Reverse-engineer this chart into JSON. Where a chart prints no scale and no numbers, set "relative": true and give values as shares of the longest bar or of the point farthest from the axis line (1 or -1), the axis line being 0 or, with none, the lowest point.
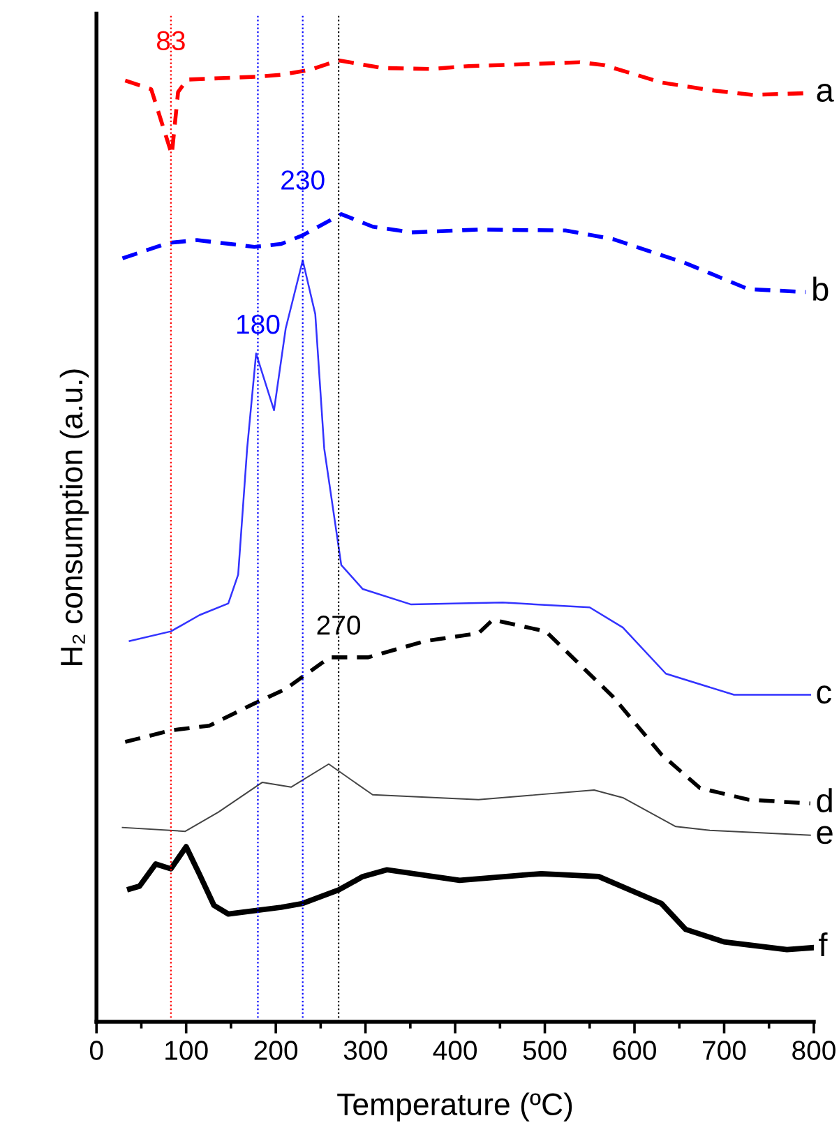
{
  "chart_data": {
    "type": "line",
    "relative": true,
    "xlabel": "Temperature (ºC)",
    "ylabel": "H₂ consumption (a.u.)",
    "xlim": [
      0,
      800
    ],
    "xticks": [
      0,
      100,
      200,
      300,
      400,
      500,
      600,
      700,
      800
    ],
    "tick_labels": "x",
    "grid": false,
    "legend": false,
    "marker": "none",
    "series": [
      {
        "name": "a",
        "color": "#ff0000",
        "line_style": "dashed",
        "x": [
          32,
          61,
          84,
          91,
          101,
          179,
          206,
          238,
          270,
          319,
          372,
          415,
          539,
          566,
          630,
          684,
          732,
          796
        ],
        "values": [
          0.979,
          0.97,
          0.902,
          0.967,
          0.98,
          0.983,
          0.985,
          0.99,
          1.0,
          0.992,
          0.991,
          0.994,
          0.998,
          0.995,
          0.977,
          0.969,
          0.964,
          0.966
        ]
      },
      {
        "name": "b",
        "color": "#0000ff",
        "line_style": "dashed",
        "x": [
          29,
          80,
          112,
          176,
          206,
          230,
          273,
          308,
          351,
          426,
          523,
          576,
          657,
          727,
          791
        ],
        "values": [
          0.794,
          0.81,
          0.813,
          0.806,
          0.809,
          0.818,
          0.84,
          0.827,
          0.821,
          0.824,
          0.823,
          0.814,
          0.789,
          0.762,
          0.759
        ]
      },
      {
        "name": "c",
        "color": "#3333ff",
        "line_style": "solid",
        "x": [
          37,
          83,
          115,
          147,
          158,
          168,
          178,
          198,
          211,
          230,
          244,
          254,
          273,
          297,
          351,
          453,
          550,
          587,
          635,
          711,
          796
        ],
        "values": [
          0.396,
          0.406,
          0.423,
          0.435,
          0.465,
          0.596,
          0.695,
          0.636,
          0.721,
          0.792,
          0.736,
          0.596,
          0.475,
          0.45,
          0.434,
          0.436,
          0.431,
          0.41,
          0.362,
          0.34,
          0.34
        ]
      },
      {
        "name": "d",
        "color": "#000000",
        "line_style": "dashed",
        "x": [
          32,
          83,
          126,
          176,
          211,
          260,
          303,
          367,
          426,
          442,
          501,
          576,
          630,
          673,
          727,
          796
        ],
        "values": [
          0.291,
          0.303,
          0.308,
          0.331,
          0.346,
          0.379,
          0.379,
          0.396,
          0.404,
          0.418,
          0.406,
          0.338,
          0.278,
          0.243,
          0.231,
          0.227
        ]
      },
      {
        "name": "e",
        "color": "#444444",
        "line_style": "solid",
        "x": [
          29,
          99,
          136,
          185,
          217,
          259,
          308,
          426,
          555,
          587,
          646,
          684,
          796
        ],
        "values": [
          0.202,
          0.198,
          0.218,
          0.249,
          0.244,
          0.268,
          0.236,
          0.231,
          0.241,
          0.233,
          0.203,
          0.199,
          0.194
        ]
      },
      {
        "name": "f",
        "color": "#000000",
        "line_style": "solid",
        "x": [
          37,
          48,
          66,
          83,
          100,
          115,
          131,
          147,
          206,
          230,
          270,
          297,
          324,
          405,
          496,
          560,
          630,
          657,
          700,
          770,
          799
        ],
        "values": [
          0.138,
          0.141,
          0.164,
          0.159,
          0.182,
          0.153,
          0.121,
          0.112,
          0.119,
          0.123,
          0.137,
          0.151,
          0.158,
          0.147,
          0.154,
          0.151,
          0.123,
          0.096,
          0.083,
          0.075,
          0.077
        ]
      }
    ],
    "ref_lines": [
      {
        "axis": "x",
        "value": 83,
        "color": "#ff0000",
        "line_style": "dotted"
      },
      {
        "axis": "x",
        "value": 180,
        "color": "#0000ff",
        "line_style": "dotted"
      },
      {
        "axis": "x",
        "value": 230,
        "color": "#0000ff",
        "line_style": "dotted"
      },
      {
        "axis": "x",
        "value": 270,
        "color": "#000000",
        "line_style": "dotted"
      }
    ],
    "annotations": [
      {
        "text": "83",
        "x": 83,
        "y": 1.018
      },
      {
        "text": "230",
        "x": 230,
        "y": 0.873
      },
      {
        "text": "180",
        "x": 180,
        "y": 0.723
      },
      {
        "text": "270",
        "x": 270,
        "y": 0.41
      }
    ]
  }
}
